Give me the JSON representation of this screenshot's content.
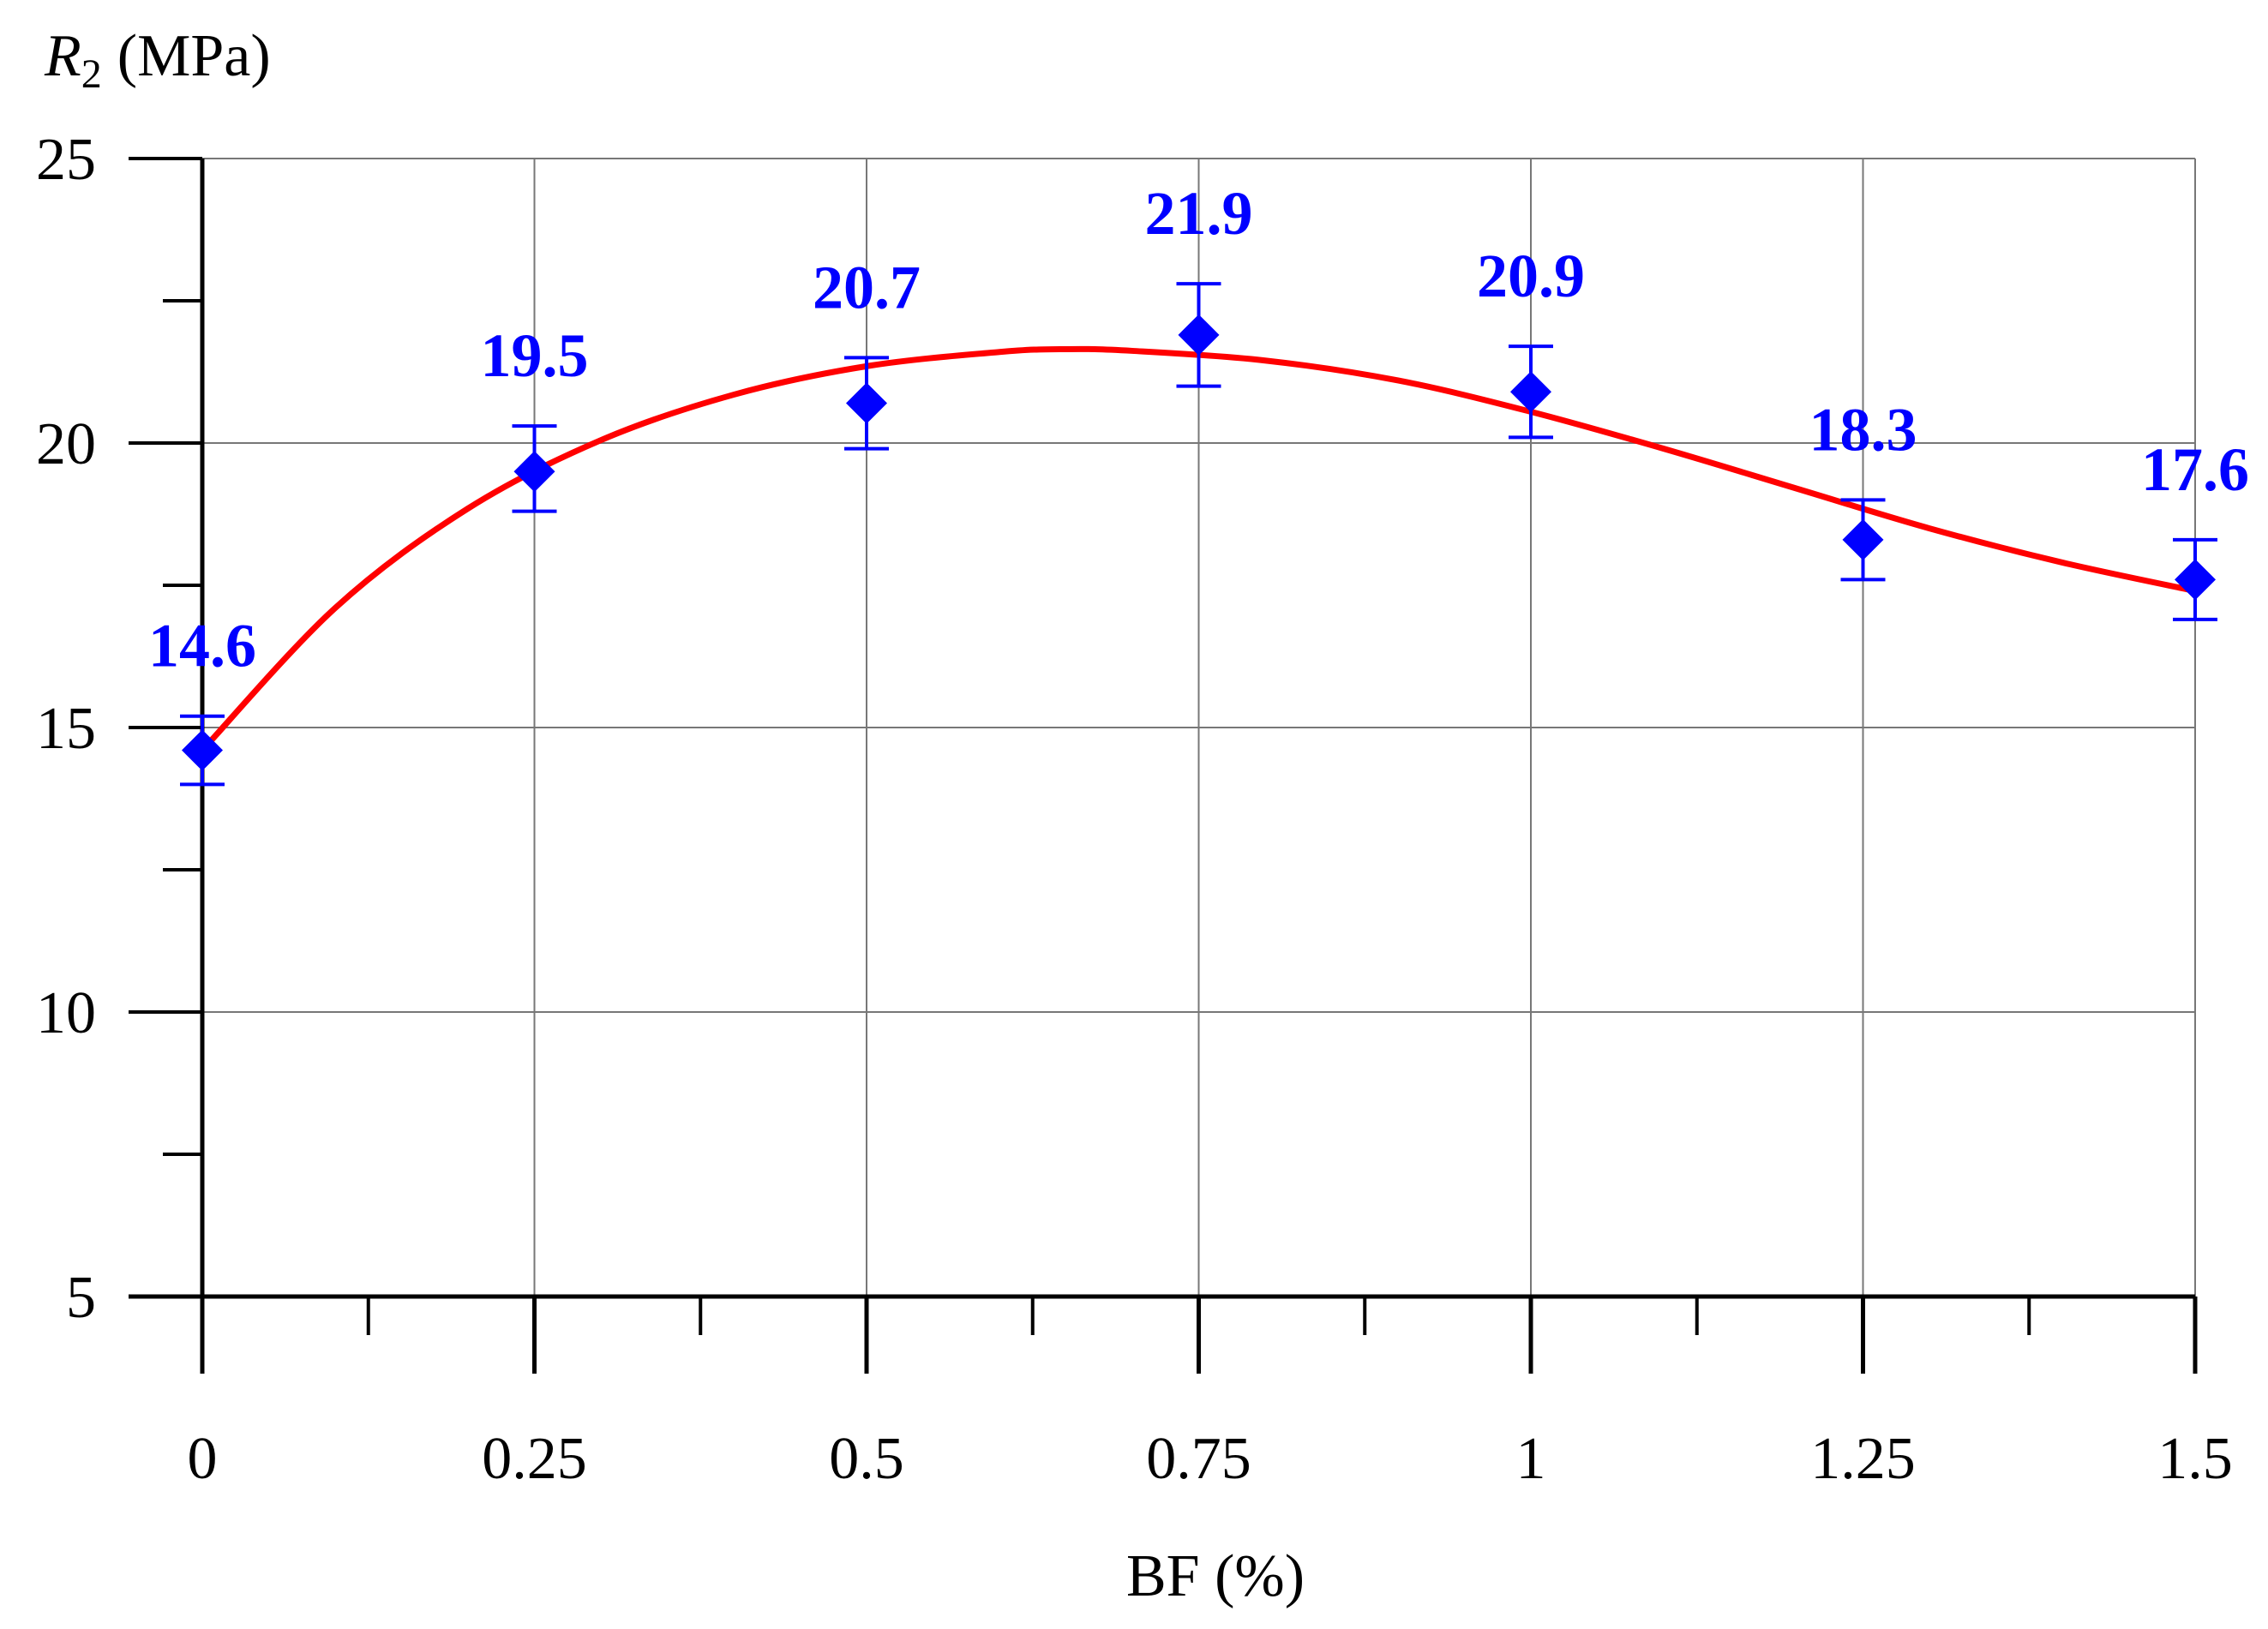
{
  "chart_data": {
    "type": "scatter",
    "title": "",
    "xlabel": "BF (%)",
    "ylabel": {
      "symbol": "R",
      "subscript": "2",
      "unit": "(MPa)"
    },
    "x": [
      0,
      0.25,
      0.5,
      0.75,
      1,
      1.25,
      1.5
    ],
    "x_tick_labels": [
      "0",
      "0.25",
      "0.5",
      "0.75",
      "1",
      "1.25",
      "1.5"
    ],
    "y_tick_labels": [
      "5",
      "10",
      "15",
      "20",
      "25"
    ],
    "xlim": [
      0,
      1.5
    ],
    "ylim": [
      5,
      25
    ],
    "grid": true,
    "series": [
      {
        "marker": "diamond",
        "color": "#0000ff",
        "values": [
          14.6,
          19.5,
          20.7,
          21.9,
          20.9,
          18.3,
          17.6
        ],
        "data_labels": [
          "14.6",
          "19.5",
          "20.7",
          "21.9",
          "20.9",
          "18.3",
          "17.6"
        ],
        "error_bars": [
          [
            14.0,
            15.2
          ],
          [
            18.8,
            20.3
          ],
          [
            19.9,
            21.5
          ],
          [
            21.0,
            22.8
          ],
          [
            20.1,
            21.7
          ],
          [
            17.6,
            19.0
          ],
          [
            16.9,
            18.3
          ]
        ]
      }
    ],
    "fit_curve": {
      "color": "#ff0000",
      "x": [
        0,
        0.1,
        0.2,
        0.3,
        0.4,
        0.5,
        0.6,
        0.65,
        0.7,
        0.8,
        0.9,
        1.0,
        1.1,
        1.2,
        1.3,
        1.4,
        1.5
      ],
      "y": [
        14.6,
        17.1,
        18.85,
        20.05,
        20.85,
        21.35,
        21.6,
        21.65,
        21.62,
        21.45,
        21.1,
        20.55,
        19.9,
        19.2,
        18.5,
        17.9,
        17.4
      ]
    }
  }
}
